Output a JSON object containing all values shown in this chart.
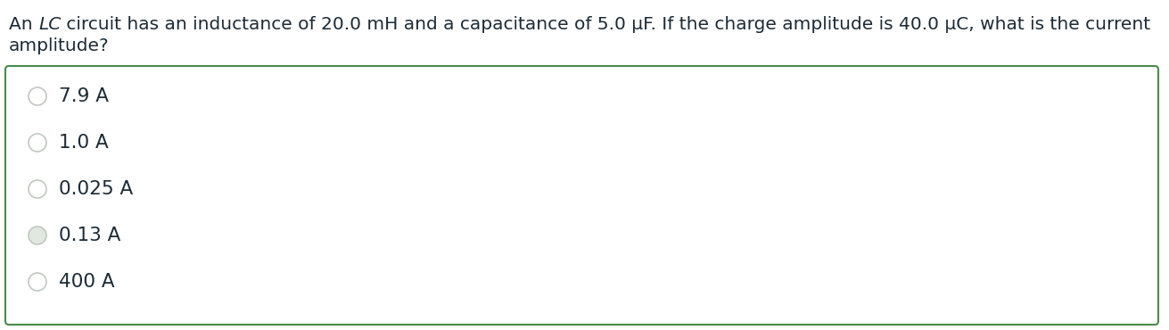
{
  "question_line1": "An  LC circuit has an inductance of 20.0 mH and a capacitance of 5.0 μF. If the charge amplitude is 40.0 μC, what is the current",
  "question_line2": "amplitude?",
  "options": [
    "7.9 A",
    "1.0 A",
    "0.025 A",
    "0.13 A",
    "400 A"
  ],
  "selected_index": 3,
  "background_color": "#ffffff",
  "text_color": "#1c2b36",
  "border_color": "#4a8a4a",
  "radio_border_color": "#c0c8c0",
  "radio_selected_fill": "#e0e8e0",
  "radio_normal_fill": "#ffffff",
  "font_size_question": 14.5,
  "font_size_options": 15.5
}
